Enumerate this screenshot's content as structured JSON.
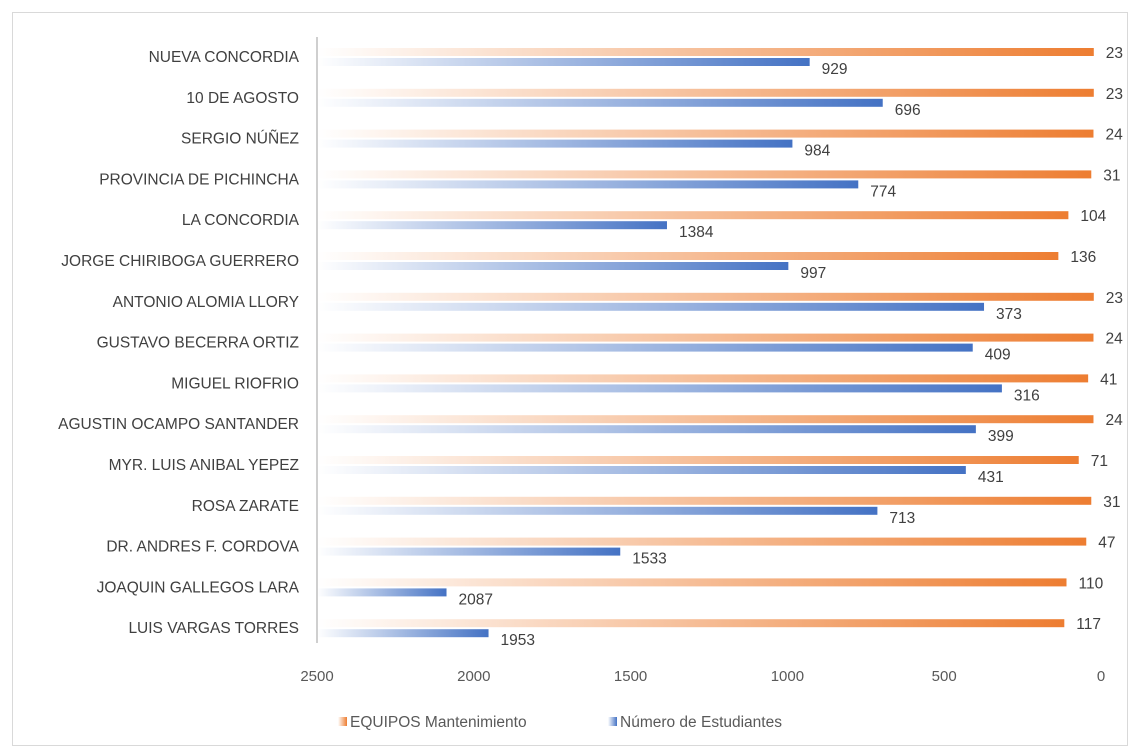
{
  "chart_data": {
    "type": "bar",
    "orientation": "horizontal",
    "x_axis_reversed": true,
    "categories": [
      "NUEVA CONCORDIA",
      "10 DE AGOSTO",
      "SERGIO NÚÑEZ",
      "PROVINCIA DE PICHINCHA",
      "LA CONCORDIA",
      "JORGE CHIRIBOGA GUERRERO",
      "ANTONIO ALOMIA LLORY",
      "GUSTAVO BECERRA ORTIZ",
      "MIGUEL RIOFRIO",
      "AGUSTIN OCAMPO SANTANDER",
      "MYR. LUIS ANIBAL YEPEZ",
      "ROSA ZARATE",
      "DR. ANDRES F. CORDOVA",
      "JOAQUIN GALLEGOS LARA",
      "LUIS VARGAS TORRES"
    ],
    "series": [
      {
        "name": "EQUIPOS Mantenimiento",
        "color": "#ed7d31",
        "values": [
          23,
          23,
          24,
          31,
          104,
          136,
          23,
          24,
          41,
          24,
          71,
          31,
          47,
          110,
          117
        ],
        "labels": [
          "23",
          "23",
          "24",
          "31",
          "104",
          "136",
          "23",
          "24",
          "41",
          "24",
          "71",
          "31",
          "47",
          "110",
          "117"
        ]
      },
      {
        "name": "Número de Estudiantes",
        "color": "#4472c4",
        "values": [
          929,
          696,
          984,
          774,
          1384,
          997,
          373,
          409,
          316,
          399,
          431,
          713,
          1533,
          2087,
          1953
        ],
        "labels": [
          "929",
          "696",
          "984",
          "774",
          "1384",
          "997",
          "373",
          "409",
          "316",
          "399",
          "431",
          "713",
          "1533",
          "2087",
          "1953"
        ]
      }
    ],
    "xlim": [
      0,
      2500
    ],
    "ticks": [
      2500,
      2000,
      1500,
      1000,
      500,
      0
    ],
    "tick_labels": [
      "2500",
      "2000",
      "1500",
      "1000",
      "500",
      "0"
    ],
    "legend": "bottom",
    "grid": false
  }
}
